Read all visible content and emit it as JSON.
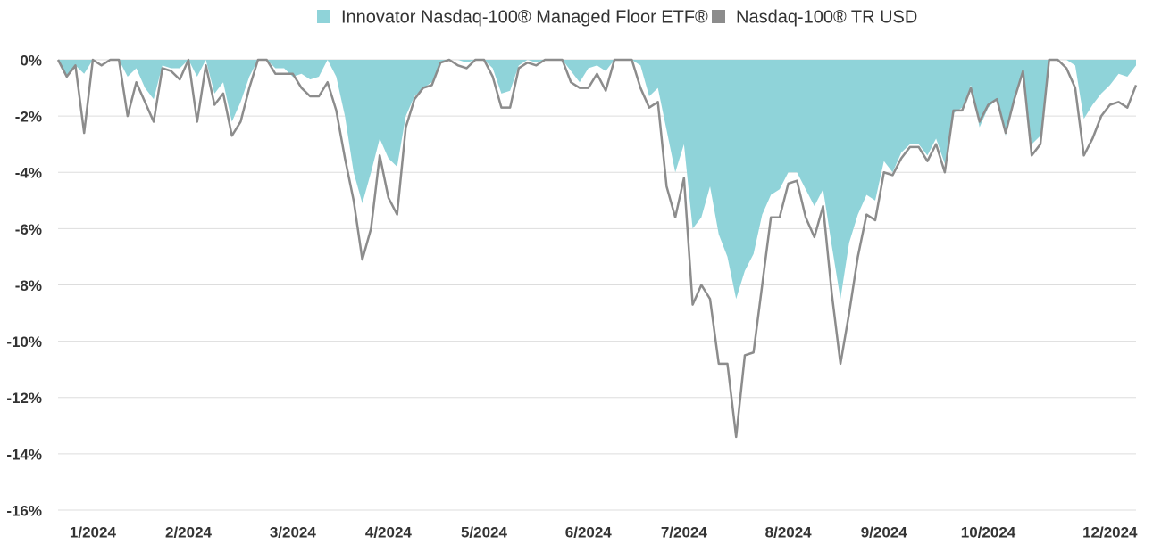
{
  "chart_data": {
    "type": "area_line",
    "categories": [
      null,
      null,
      null,
      null,
      "1/2024",
      null,
      null,
      null,
      null,
      null,
      null,
      null,
      null,
      null,
      null,
      "2/2024",
      null,
      null,
      null,
      null,
      null,
      null,
      null,
      null,
      null,
      null,
      null,
      "3/2024",
      null,
      null,
      null,
      null,
      null,
      null,
      null,
      null,
      null,
      null,
      "4/2024",
      null,
      null,
      null,
      null,
      null,
      null,
      null,
      null,
      null,
      null,
      "5/2024",
      null,
      null,
      null,
      null,
      null,
      null,
      null,
      null,
      null,
      null,
      null,
      "6/2024",
      null,
      null,
      null,
      null,
      null,
      null,
      null,
      null,
      null,
      null,
      "7/2024",
      null,
      null,
      null,
      null,
      null,
      null,
      null,
      null,
      null,
      null,
      null,
      "8/2024",
      null,
      null,
      null,
      null,
      null,
      null,
      null,
      null,
      null,
      null,
      "9/2024",
      null,
      null,
      null,
      null,
      null,
      null,
      null,
      null,
      null,
      null,
      null,
      "10/2024",
      null,
      null,
      null,
      null,
      null,
      null,
      null,
      null,
      null,
      null,
      null,
      null,
      null,
      "12/2024",
      null,
      null,
      null
    ],
    "series": [
      {
        "name": "Innovator Nasdaq-100® Managed Floor ETF®",
        "color": "#8fd3d9",
        "kind": "area",
        "values": [
          0,
          -0.6,
          -0.2,
          -0.5,
          0,
          0,
          0,
          0,
          -0.6,
          -0.3,
          -1.0,
          -1.4,
          -0.2,
          -0.3,
          -0.3,
          0,
          -0.6,
          0,
          -1.2,
          -0.8,
          -2.2,
          -1.5,
          -0.6,
          0,
          0,
          -0.3,
          -0.3,
          -0.6,
          -0.5,
          -0.7,
          -0.6,
          0,
          -0.6,
          -2.0,
          -4.0,
          -5.1,
          -4.0,
          -2.8,
          -3.5,
          -3.8,
          -2.0,
          -1.3,
          -1.0,
          -0.8,
          -0.1,
          0,
          0,
          -0.1,
          0,
          0,
          -0.3,
          -1.2,
          -1.1,
          -0.2,
          0,
          -0.1,
          0,
          0,
          0,
          -0.4,
          -0.8,
          -0.3,
          -0.2,
          -0.4,
          0,
          0,
          0,
          -0.2,
          -1.3,
          -1.0,
          -2.5,
          -4.0,
          -3.0,
          -6.0,
          -5.6,
          -4.5,
          -6.2,
          -7.0,
          -8.5,
          -7.5,
          -6.9,
          -5.5,
          -4.8,
          -4.6,
          -4.0,
          -4.0,
          -4.6,
          -5.2,
          -4.6,
          -6.6,
          -8.5,
          -6.5,
          -5.5,
          -4.8,
          -5.0,
          -3.6,
          -4.0,
          -3.3,
          -3.0,
          -3.0,
          -3.4,
          -2.8,
          -3.7,
          -1.9,
          -1.7,
          -0.9,
          -2.4,
          -1.7,
          -1.4,
          -2.7,
          -1.3,
          -0.3,
          -3.0,
          -2.7,
          0,
          0,
          0,
          -0.2,
          -2.1,
          -1.6,
          -1.2,
          -0.9,
          -0.5,
          -0.6,
          -0.2
        ]
      },
      {
        "name": "Nasdaq-100® TR USD",
        "color": "#8c8c8c",
        "kind": "line",
        "values": [
          0,
          -0.6,
          -0.2,
          -2.6,
          0,
          -0.2,
          0,
          0,
          -2.0,
          -0.8,
          -1.5,
          -2.2,
          -0.3,
          -0.4,
          -0.7,
          0,
          -2.2,
          -0.2,
          -1.6,
          -1.2,
          -2.7,
          -2.2,
          -1.0,
          0,
          0,
          -0.5,
          -0.5,
          -0.5,
          -1.0,
          -1.3,
          -1.3,
          -0.8,
          -1.8,
          -3.5,
          -5.0,
          -7.1,
          -6.0,
          -3.4,
          -4.9,
          -5.5,
          -2.4,
          -1.4,
          -1.0,
          -0.9,
          -0.1,
          0,
          -0.2,
          -0.3,
          0,
          0,
          -0.6,
          -1.7,
          -1.7,
          -0.3,
          -0.1,
          -0.2,
          0,
          0,
          0,
          -0.8,
          -1.0,
          -1.0,
          -0.5,
          -1.1,
          0,
          0,
          0,
          -1.0,
          -1.7,
          -1.5,
          -4.5,
          -5.6,
          -4.2,
          -8.7,
          -8.0,
          -8.5,
          -10.8,
          -10.8,
          -13.4,
          -10.5,
          -10.4,
          -8.0,
          -5.6,
          -5.6,
          -4.4,
          -4.3,
          -5.6,
          -6.3,
          -5.2,
          -8.3,
          -10.8,
          -9.0,
          -7.0,
          -5.5,
          -5.7,
          -4.0,
          -4.1,
          -3.5,
          -3.1,
          -3.1,
          -3.6,
          -3.0,
          -4.0,
          -1.8,
          -1.8,
          -1.0,
          -2.2,
          -1.6,
          -1.4,
          -2.6,
          -1.4,
          -0.4,
          -3.4,
          -3.0,
          0,
          0,
          -0.3,
          -1.0,
          -3.4,
          -2.8,
          -2.0,
          -1.6,
          -1.5,
          -1.7,
          -0.9
        ]
      }
    ],
    "ylim": [
      -16,
      0
    ],
    "yticks": [
      {
        "value": 0,
        "label": "0%"
      },
      {
        "value": -2,
        "label": "-2%"
      },
      {
        "value": -4,
        "label": "-4%"
      },
      {
        "value": -6,
        "label": "-6%"
      },
      {
        "value": -8,
        "label": "-8%"
      },
      {
        "value": -10,
        "label": "-10%"
      },
      {
        "value": -12,
        "label": "-12%"
      },
      {
        "value": -14,
        "label": "-14%"
      },
      {
        "value": -16,
        "label": "-16%"
      }
    ],
    "grid": true
  }
}
